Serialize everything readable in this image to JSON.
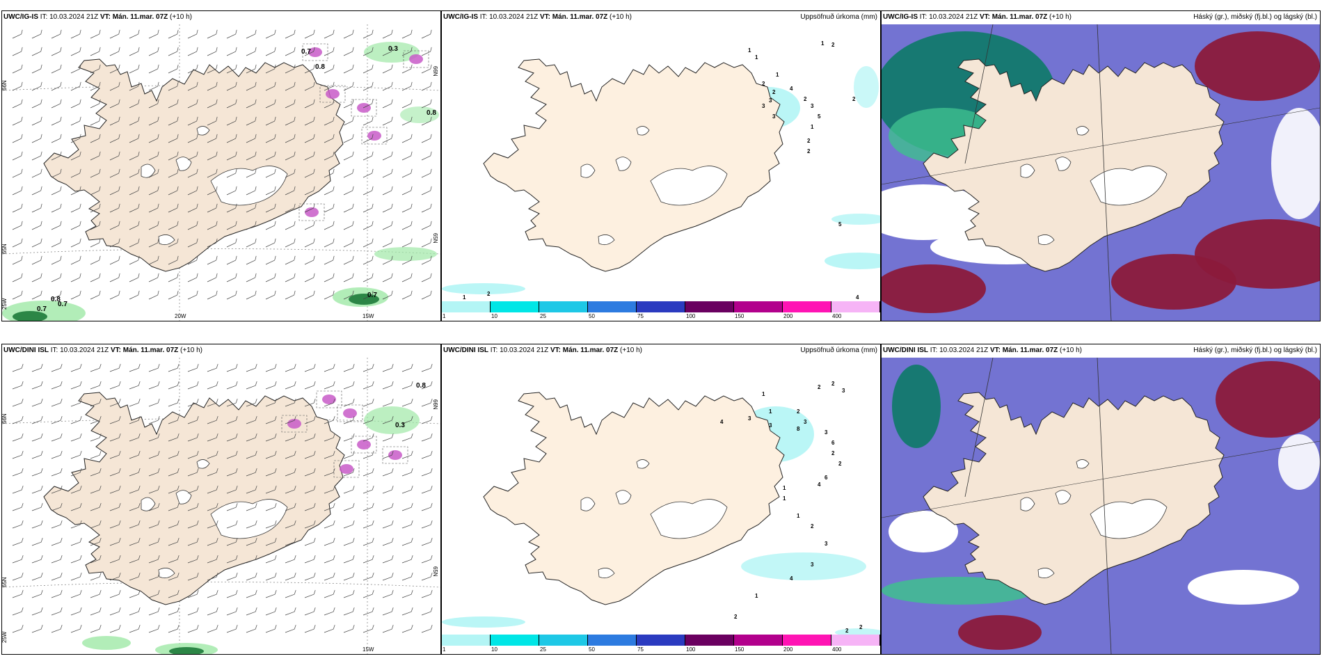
{
  "panels": [
    {
      "id": "p1",
      "model": "UWC/IG-IS",
      "it_label": "IT:",
      "it": "10.03.2024 21Z",
      "vt_label": "VT:",
      "vt": "Mán. 11.mar. 07Z",
      "lead": "(+10 h)",
      "title": "",
      "kind": "wind"
    },
    {
      "id": "p2",
      "model": "UWC/IG-IS",
      "it_label": "IT:",
      "it": "10.03.2024 21Z",
      "vt_label": "VT:",
      "vt": "Mán. 11.mar. 07Z",
      "lead": "(+10 h)",
      "title": "Uppsöfnuð úrkoma (mm)",
      "kind": "precip"
    },
    {
      "id": "p3",
      "model": "UWC/IG-IS",
      "it_label": "IT:",
      "it": "10.03.2024 21Z",
      "vt_label": "VT:",
      "vt": "Mán. 11.mar. 07Z",
      "lead": "(+10 h)",
      "title": "Háský (gr.), miðský (fj.bl.) og lágský (bl.)",
      "kind": "cloud"
    },
    {
      "id": "p4",
      "model": "UWC/DINI ISL",
      "it_label": "IT:",
      "it": "10.03.2024 21Z",
      "vt_label": "VT:",
      "vt": "Mán. 11.mar. 07Z",
      "lead": "(+10 h)",
      "title": "",
      "kind": "wind"
    },
    {
      "id": "p5",
      "model": "UWC/DINI ISL",
      "it_label": "IT:",
      "it": "10.03.2024 21Z",
      "vt_label": "VT:",
      "vt": "Mán. 11.mar. 07Z",
      "lead": "(+10 h)",
      "title": "Uppsöfnuð úrkoma (mm)",
      "kind": "precip"
    },
    {
      "id": "p6",
      "model": "UWC/DINI ISL",
      "it_label": "IT:",
      "it": "10.03.2024 21Z",
      "vt_label": "VT:",
      "vt": "Mán. 11.mar. 07Z",
      "lead": "(+10 h)",
      "title": "Háský (gr.), miðský (fj.bl.) og lágský (bl.)",
      "kind": "cloud"
    }
  ],
  "grid_labels": {
    "lat_left": [
      "66N",
      "65N",
      "25W"
    ],
    "lon_bottom_top": [
      "20W",
      "15W"
    ],
    "lon_bottom_bottom": [
      "15W"
    ],
    "lat_right": [
      "66N",
      "65N"
    ]
  },
  "wind_values_top": [
    "0.7",
    "0.7",
    "0.8",
    "0.7",
    "0.8",
    "0.7",
    "0.8",
    "0.3"
  ],
  "wind_values_bottom": [
    "0.8",
    "0.3"
  ],
  "precip_colorbar": {
    "ticks": [
      "1",
      "10",
      "25",
      "50",
      "75",
      "100",
      "150",
      "200",
      "400"
    ],
    "colors": [
      "#b3f5f5",
      "#00e6e6",
      "#1ec8e6",
      "#2d7be0",
      "#2b3bc0",
      "#6a0060",
      "#b2008c",
      "#ff14b4",
      "#f6b4f6"
    ]
  },
  "precip_values_top": [
    "1",
    "1",
    "1",
    "2",
    "1",
    "2",
    "2",
    "3",
    "4",
    "2",
    "3",
    "5",
    "1",
    "2",
    "2",
    "3",
    "3",
    "2",
    "5",
    "4",
    "2",
    "1"
  ],
  "precip_values_bottom": [
    "1",
    "2",
    "2",
    "3",
    "1",
    "3",
    "4",
    "2",
    "3",
    "3",
    "8",
    "3",
    "6",
    "2",
    "2",
    "6",
    "4",
    "1",
    "1",
    "1",
    "2",
    "3",
    "3",
    "4",
    "1",
    "2",
    "2",
    "2"
  ],
  "colors": {
    "land": "#f5e6d6",
    "land_precip": "#fdf0e0",
    "sea_green": "#9fe8a6",
    "purple": "#c85ac8",
    "cloud_high": "#0d7a67",
    "cloud_mid": "#6b6bd0",
    "cloud_low": "#8b1a3b"
  }
}
